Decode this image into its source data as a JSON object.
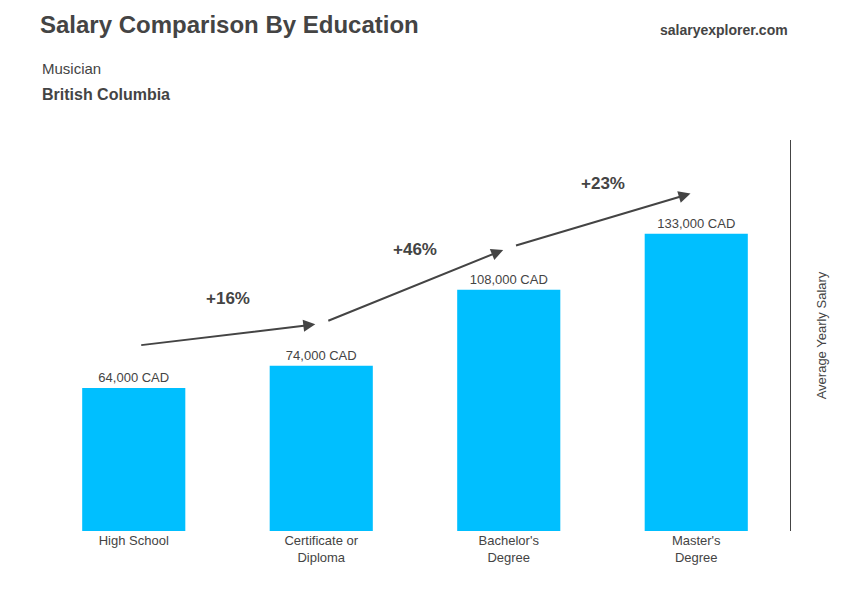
{
  "chart_data": {
    "type": "bar",
    "title": "Salary Comparison By Education",
    "subtitle": [
      "Musician",
      "British Columbia"
    ],
    "source": "salaryexplorer.com",
    "ylabel": "Average Yearly Salary",
    "categories": [
      "High School",
      "Certificate or\nDiploma",
      "Bachelor's\nDegree",
      "Master's\nDegree"
    ],
    "values": [
      64000,
      74000,
      108000,
      133000
    ],
    "value_labels": [
      "64,000 CAD",
      "74,000 CAD",
      "108,000 CAD",
      "133,000 CAD"
    ],
    "data_labels": true,
    "annotations": [
      "+16%",
      "+46%",
      "+23%"
    ],
    "color": "#00BFFF",
    "ylim": [
      0,
      175000
    ],
    "grid": false,
    "tick_labels": "x"
  }
}
